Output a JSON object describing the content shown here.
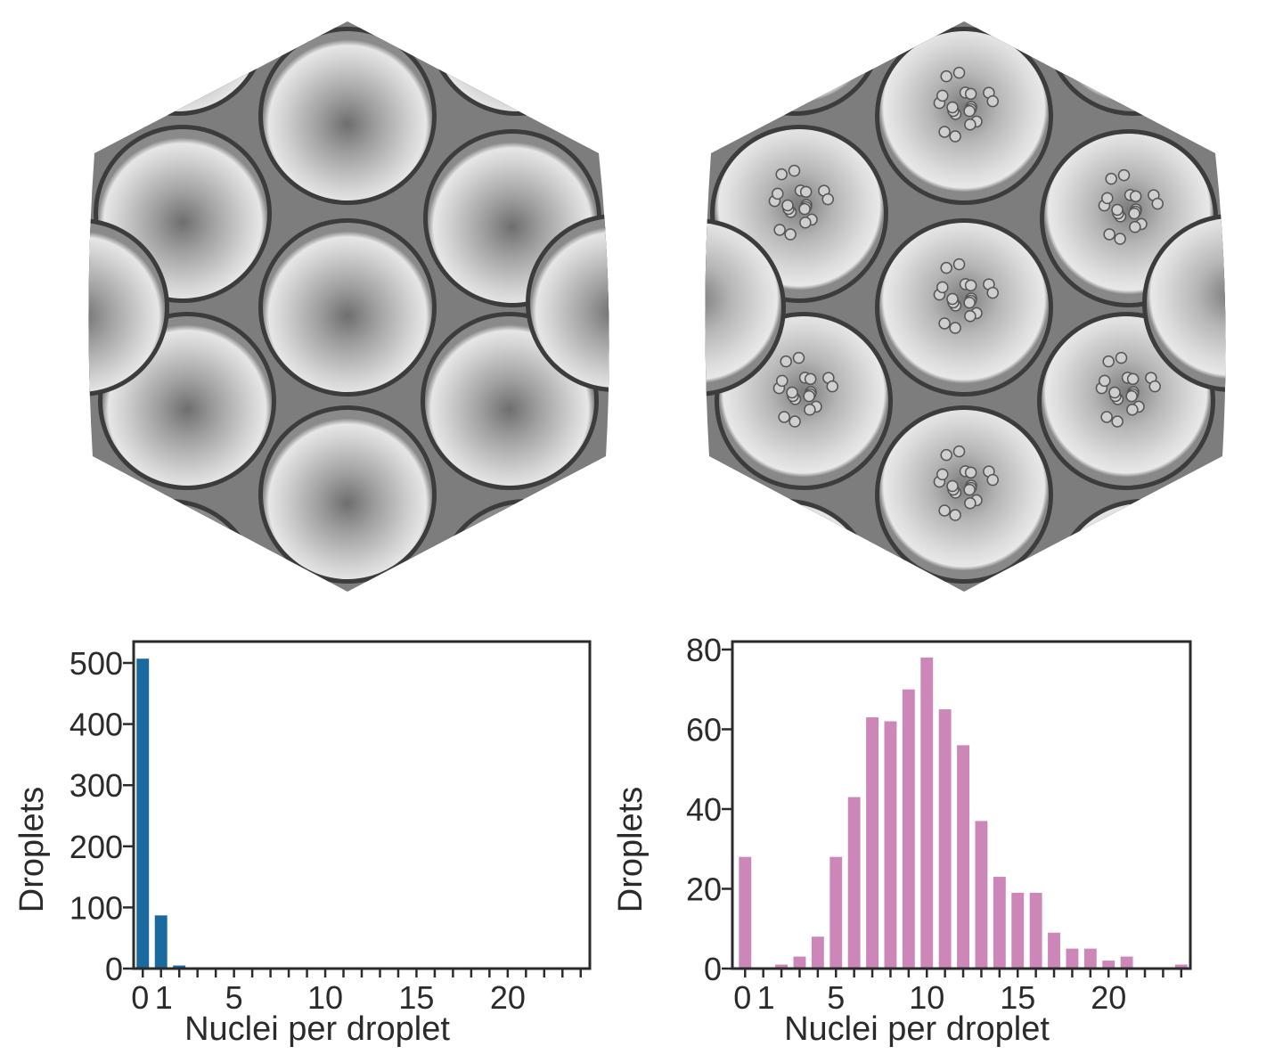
{
  "micrographs": [
    {
      "description_hidden": false,
      "droplet_contents": "empty"
    },
    {
      "droplet_contents": "nuclei clusters"
    }
  ],
  "chart_data": [
    {
      "type": "bar",
      "xlabel": "Nuclei per droplet",
      "ylabel": "Droplets",
      "x": [
        0,
        1,
        2,
        3,
        4,
        5,
        6,
        7,
        8,
        9,
        10,
        11,
        12,
        13,
        14,
        15,
        16,
        17,
        18,
        19,
        20,
        21,
        22,
        23,
        24
      ],
      "values": [
        507,
        87,
        5,
        0,
        0,
        0,
        0,
        0,
        0,
        0,
        0,
        0,
        0,
        0,
        0,
        0,
        0,
        0,
        0,
        0,
        0,
        0,
        0,
        0,
        0
      ],
      "xlim": [
        -0.5,
        24.5
      ],
      "ylim": [
        0,
        535
      ],
      "xticks": [
        0,
        1,
        5,
        10,
        15,
        20
      ],
      "xtick_labels": [
        "0",
        "1",
        "5",
        "10",
        "15",
        "20"
      ],
      "yticks": [
        0,
        100,
        200,
        300,
        400,
        500
      ],
      "ytick_labels": [
        "0",
        "100",
        "200",
        "300",
        "400",
        "500"
      ],
      "color": "#1a6aa0",
      "grid": false
    },
    {
      "type": "bar",
      "xlabel": "Nuclei per droplet",
      "ylabel": "Droplets",
      "x": [
        0,
        1,
        2,
        3,
        4,
        5,
        6,
        7,
        8,
        9,
        10,
        11,
        12,
        13,
        14,
        15,
        16,
        17,
        18,
        19,
        20,
        21,
        22,
        23,
        24
      ],
      "values": [
        28,
        0,
        1,
        3,
        8,
        28,
        43,
        63,
        62,
        70,
        78,
        65,
        56,
        37,
        23,
        19,
        19,
        9,
        5,
        5,
        2,
        3,
        0,
        0,
        1
      ],
      "xlim": [
        -0.7,
        24.5
      ],
      "ylim": [
        0,
        82
      ],
      "xticks": [
        0,
        1,
        5,
        10,
        15,
        20
      ],
      "xtick_labels": [
        "0",
        "1",
        "5",
        "10",
        "15",
        "20"
      ],
      "yticks": [
        0,
        20,
        40,
        60,
        80
      ],
      "ytick_labels": [
        "0",
        "20",
        "40",
        "60",
        "80"
      ],
      "color": "#cc86b8",
      "grid": false
    }
  ]
}
